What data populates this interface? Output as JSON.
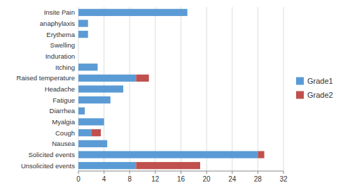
{
  "chart_data": {
    "type": "bar",
    "orientation": "horizontal",
    "stacked": true,
    "categories": [
      "Unsolicited events",
      "Solicited events",
      "Nausea",
      "Cough",
      "Myalgia",
      "Diarrhea",
      "Fatigue",
      "Headache",
      "Raised temperature",
      "Itching",
      "Induration",
      "Swelling",
      "Erythema",
      "anaphylaxis",
      "Insite Pain"
    ],
    "series": [
      {
        "name": "Grade1",
        "color": "#5B9BD5",
        "values": [
          9,
          28,
          4.5,
          2,
          4,
          1,
          5,
          7,
          9,
          3,
          0,
          0,
          1.5,
          1.5,
          17
        ]
      },
      {
        "name": "Grade2",
        "color": "#C0504D",
        "values": [
          10,
          1,
          0,
          1.5,
          0,
          0,
          0,
          0,
          2,
          0,
          0,
          0,
          0,
          0,
          0
        ]
      }
    ],
    "xlim": [
      0,
      32
    ],
    "xticks": [
      0,
      4,
      8,
      12,
      16,
      20,
      24,
      28,
      32
    ],
    "grid": true,
    "legend": "right"
  }
}
